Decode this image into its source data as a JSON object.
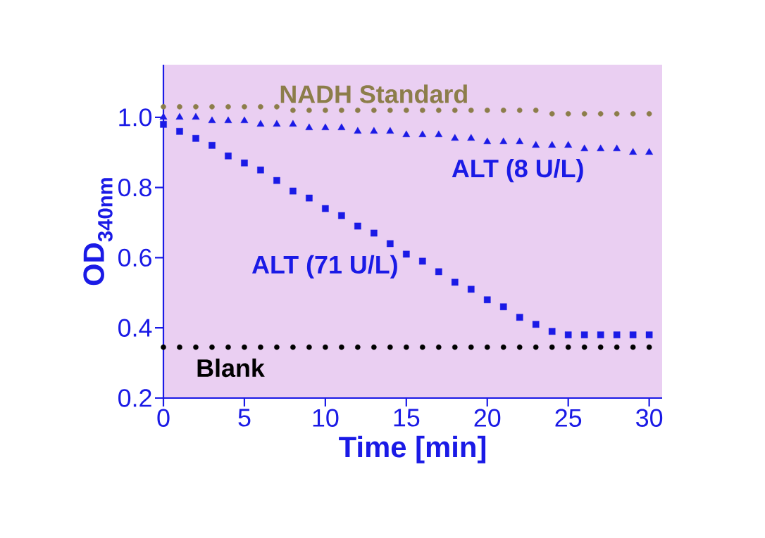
{
  "chart_data": {
    "type": "scatter",
    "xlabel": "Time  [min]",
    "ylabel": "OD$_{340nm}$",
    "x": [
      0,
      1,
      2,
      3,
      4,
      5,
      6,
      7,
      8,
      9,
      10,
      11,
      12,
      13,
      14,
      15,
      16,
      17,
      18,
      19,
      20,
      21,
      22,
      23,
      24,
      25,
      26,
      27,
      28,
      29,
      30
    ],
    "xlim": [
      0,
      30.8
    ],
    "ylim": [
      0.2,
      1.15
    ],
    "xticks": [
      0,
      5,
      10,
      15,
      20,
      25,
      30
    ],
    "yticks": [
      {
        "value": 0.2,
        "label": "0.2"
      },
      {
        "value": 0.4,
        "label": "0.4"
      },
      {
        "value": 0.6,
        "label": "0.6"
      },
      {
        "value": 0.8,
        "label": "0.8"
      },
      {
        "value": 1.0,
        "label": "1.0"
      }
    ],
    "series": [
      {
        "name": "NADH Standard",
        "color": "#8c7d4a",
        "marker": "circle",
        "values": [
          1.03,
          1.03,
          1.03,
          1.03,
          1.03,
          1.03,
          1.03,
          1.03,
          1.02,
          1.02,
          1.02,
          1.02,
          1.02,
          1.02,
          1.02,
          1.02,
          1.02,
          1.02,
          1.02,
          1.02,
          1.02,
          1.02,
          1.02,
          1.02,
          1.01,
          1.01,
          1.01,
          1.01,
          1.01,
          1.01,
          1.01
        ]
      },
      {
        "name": "ALT (8 U/L)",
        "color": "#1a1ae6",
        "marker": "triangle",
        "values": [
          1.0,
          1.0,
          1.0,
          0.99,
          0.99,
          0.99,
          0.98,
          0.98,
          0.98,
          0.97,
          0.97,
          0.97,
          0.96,
          0.96,
          0.96,
          0.95,
          0.95,
          0.95,
          0.94,
          0.94,
          0.93,
          0.93,
          0.93,
          0.92,
          0.92,
          0.92,
          0.91,
          0.91,
          0.91,
          0.9,
          0.9
        ]
      },
      {
        "name": "ALT (71 U/L)",
        "color": "#1a1ae6",
        "marker": "square",
        "values": [
          0.98,
          0.96,
          0.94,
          0.92,
          0.89,
          0.87,
          0.85,
          0.82,
          0.79,
          0.77,
          0.74,
          0.72,
          0.69,
          0.67,
          0.64,
          0.61,
          0.59,
          0.56,
          0.53,
          0.51,
          0.48,
          0.46,
          0.43,
          0.41,
          0.39,
          0.38,
          0.38,
          0.38,
          0.38,
          0.38,
          0.38
        ]
      },
      {
        "name": "Blank",
        "color": "#000000",
        "marker": "circle",
        "values": [
          0.345,
          0.345,
          0.345,
          0.345,
          0.345,
          0.345,
          0.345,
          0.345,
          0.345,
          0.345,
          0.345,
          0.345,
          0.345,
          0.345,
          0.345,
          0.345,
          0.345,
          0.345,
          0.345,
          0.345,
          0.345,
          0.345,
          0.345,
          0.345,
          0.345,
          0.345,
          0.345,
          0.345,
          0.345,
          0.345,
          0.345
        ]
      }
    ]
  }
}
